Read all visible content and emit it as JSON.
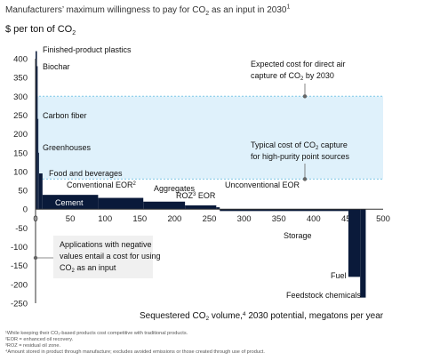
{
  "chart_data": {
    "type": "bar",
    "title": "Manufacturers’ maximum willingness to pay for CO",
    "title_sub": "2",
    "title_tail": " as an input in 2030",
    "title_sup": "1",
    "y_unit": "$ per ton of CO",
    "y_unit_sub": "2",
    "ylim": [
      -250,
      400
    ],
    "xlim": [
      0,
      500
    ],
    "yticks": [
      "400",
      "350",
      "300",
      "250",
      "200",
      "150",
      "100",
      "50",
      "0",
      "-50",
      "-100",
      "-150",
      "-200",
      "-250"
    ],
    "xticks": [
      "0",
      "50",
      "100",
      "150",
      "200",
      "250",
      "300",
      "350",
      "400",
      "450",
      "500"
    ],
    "xlabel_a": "Sequestered CO",
    "xlabel_sub": "2",
    "xlabel_b": " volume,",
    "xlabel_sup": "4",
    "xlabel_c": " 2030 potential, megatons per year",
    "segments": [
      {
        "name": "Finished-product plastics",
        "x0": 0,
        "x1": 2,
        "value": 420
      },
      {
        "name": "Biochar",
        "x0": 2,
        "x1": 3,
        "value": 380
      },
      {
        "name": "Carbon fiber",
        "x0": 3,
        "x1": 4,
        "value": 240
      },
      {
        "name": "Greenhouses",
        "x0": 4,
        "x1": 5,
        "value": 150
      },
      {
        "name": "Food and beverages",
        "x0": 5,
        "x1": 10,
        "value": 95
      },
      {
        "name": "Cement",
        "x0": 10,
        "x1": 90,
        "value": 38
      },
      {
        "name": "Conventional EOR",
        "x0": 90,
        "x1": 155,
        "value": 30
      },
      {
        "name": "Aggregates",
        "x0": 155,
        "x1": 215,
        "value": 20
      },
      {
        "name": "ROZ EOR",
        "x0": 215,
        "x1": 260,
        "value": 10
      },
      {
        "name": "Unconventional EOR",
        "x0": 260,
        "x1": 265,
        "value": 5
      },
      {
        "name": "Storage",
        "x0": 265,
        "x1": 450,
        "value": -5
      },
      {
        "name": "Fuel",
        "x0": 450,
        "x1": 467,
        "value": -180
      },
      {
        "name": "Feedstock chemicals",
        "x0": 467,
        "x1": 475,
        "value": -235
      }
    ],
    "bands": [
      {
        "name": "Typical cost of CO2 capture for high-purity point sources",
        "y0": 80,
        "y1": 300
      },
      {
        "name": "Expected cost for direct air capture of CO2 by 2030",
        "y": 300
      }
    ],
    "labels": {
      "plastics": "Finished-product plastics",
      "biochar": "Biochar",
      "carbon_fiber": "Carbon fiber",
      "greenhouses": "Greenhouses",
      "food": "Food and beverages",
      "cement": "Cement",
      "conv_eor": "Conventional EOR",
      "conv_eor_sup": "2",
      "aggregates": "Aggregates",
      "roz": "ROZ",
      "roz_sup": "3",
      "roz_tail": " EOR",
      "unconv_eor": "Unconventional EOR",
      "storage": "Storage",
      "fuel": "Fuel",
      "feedstock": "Feedstock chemicals"
    },
    "annotations": {
      "dac_1": "Expected cost for direct air",
      "dac_2a": "capture of CO",
      "dac_2sub": "2",
      "dac_2b": " by 2030",
      "pt_1a": "Typical cost of CO",
      "pt_1sub": "2",
      "pt_1b": " capture",
      "pt_2": "for high-purity point sources",
      "neg_1": "Applications with negative",
      "neg_2": "values entail a cost for using",
      "neg_3a": "CO",
      "neg_3sub": "2",
      "neg_3b": " as an input"
    },
    "colors": {
      "bar": "#0a1a3a",
      "band": "#dff1fb",
      "band_line": "#7fc8e8",
      "axis": "#333333"
    }
  },
  "footnotes": [
    "¹While keeping their CO₂-based products cost competitive with traditional products.",
    "²EOR = enhanced oil recovery.",
    "³ROZ = residual oil zone.",
    "⁴Amount stored in product through manufacture; excludes avoided emissions or those created through use of product."
  ]
}
